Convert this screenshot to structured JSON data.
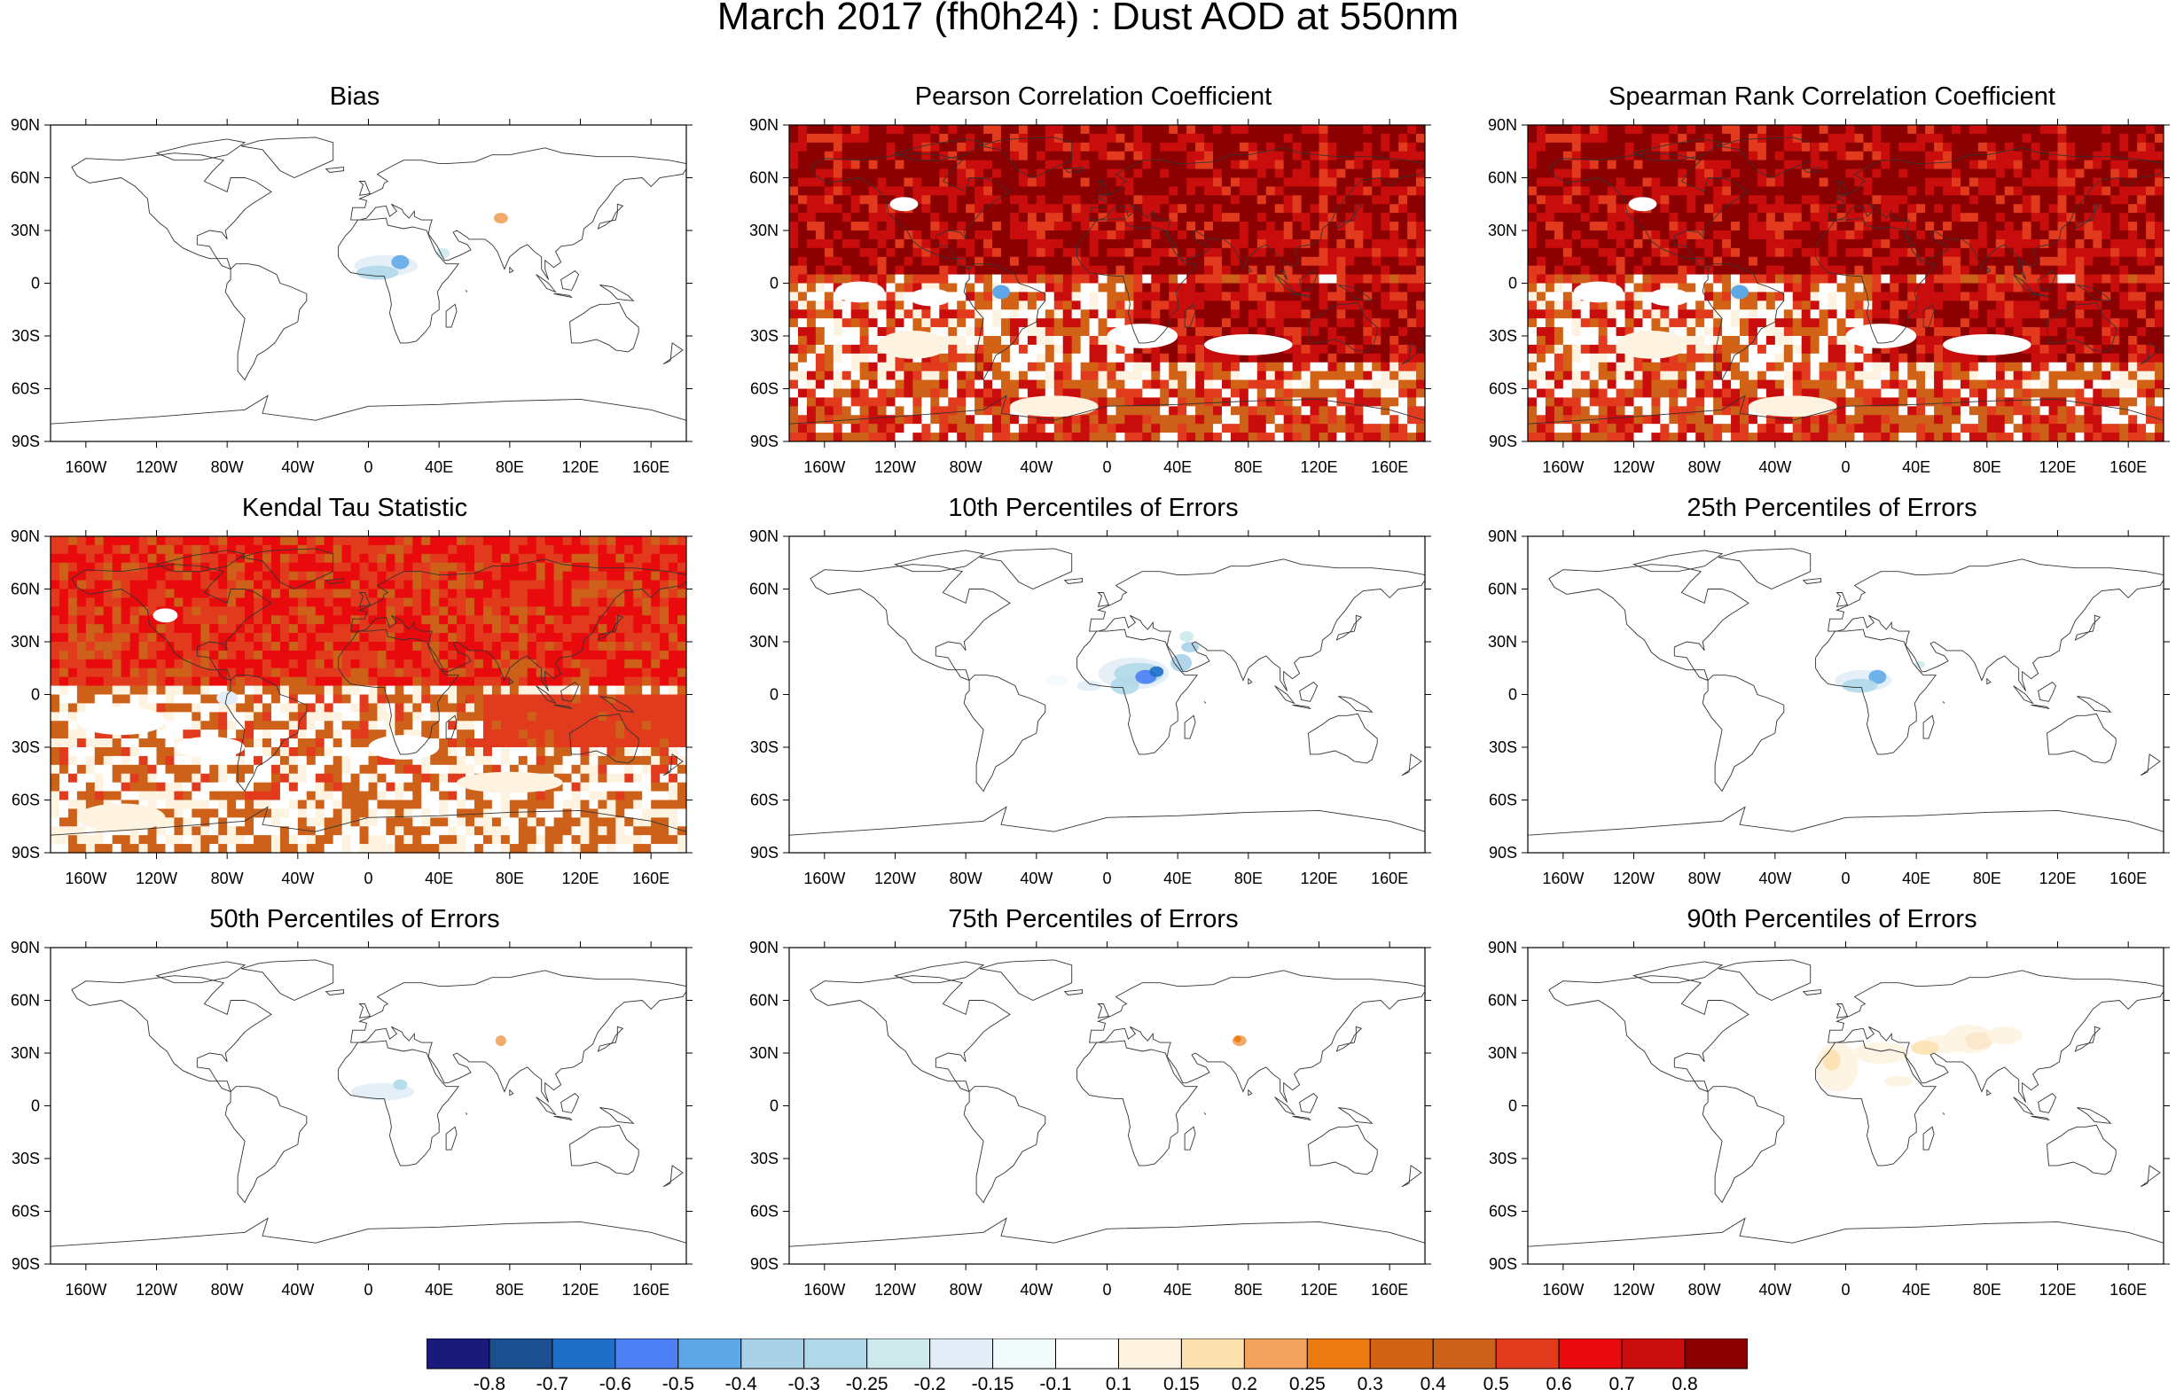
{
  "title": "March 2017 (fh0h24) : Dust AOD at 550nm",
  "axes": {
    "lat_labels": [
      "90N",
      "60N",
      "30N",
      "0",
      "30S",
      "60S",
      "90S"
    ],
    "lon_labels": [
      "160W",
      "120W",
      "80W",
      "40W",
      "0",
      "40E",
      "80E",
      "120E",
      "160E"
    ]
  },
  "panels": [
    {
      "title": "Bias",
      "fill": "bias"
    },
    {
      "title": "Pearson Correlation Coefficient",
      "fill": "corr_high"
    },
    {
      "title": "Spearman Rank Correlation Coefficient",
      "fill": "corr_high"
    },
    {
      "title": "Kendal Tau Statistic",
      "fill": "corr_mid"
    },
    {
      "title": "10th Percentiles of Errors",
      "fill": "p10"
    },
    {
      "title": "25th Percentiles of Errors",
      "fill": "p25"
    },
    {
      "title": "50th Percentiles of Errors",
      "fill": "p50"
    },
    {
      "title": "75th Percentiles of Errors",
      "fill": "p75"
    },
    {
      "title": "90th Percentiles of Errors",
      "fill": "p90"
    }
  ],
  "colorbar": {
    "colors": [
      "#1a1a7a",
      "#1b4f8f",
      "#1f6fc9",
      "#4d7ff5",
      "#5fa8e8",
      "#a9d2e8",
      "#b0d8e8",
      "#cde9ec",
      "#e2edf7",
      "#f2fbfc",
      "#ffffff",
      "#fdf3e0",
      "#fde2b0",
      "#f2a25c",
      "#ec7a10",
      "#d26215",
      "#cd6119",
      "#e23a1d",
      "#e80a0c",
      "#c90c0c",
      "#8b0000"
    ],
    "labels": [
      "-0.8",
      "-0.7",
      "-0.6",
      "-0.5",
      "-0.4",
      "-0.3",
      "-0.25",
      "-0.2",
      "-0.15",
      "-0.1",
      "0.1",
      "0.15",
      "0.2",
      "0.25",
      "0.3",
      "0.4",
      "0.5",
      "0.6",
      "0.7",
      "0.8"
    ]
  }
}
